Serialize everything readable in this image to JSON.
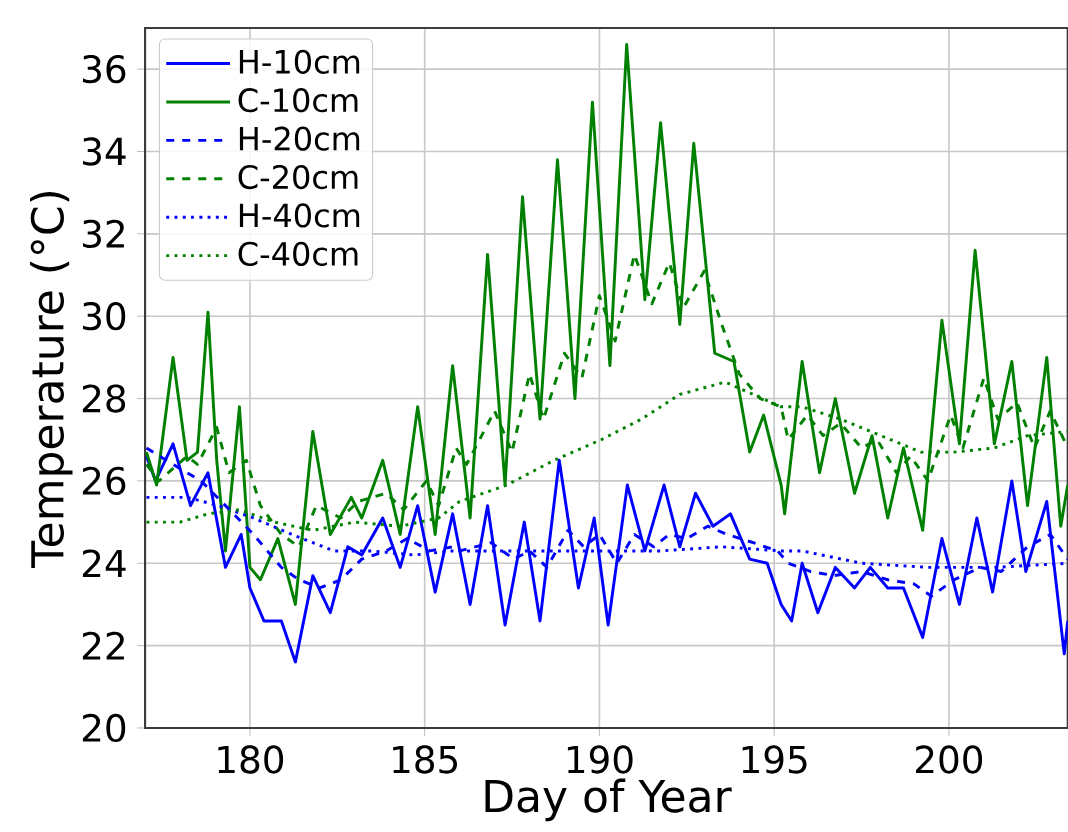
{
  "chart_data": {
    "type": "line",
    "xlabel": "Day of Year",
    "ylabel": "Temperature (°C)",
    "xlim": [
      177,
      203.4
    ],
    "ylim": [
      20,
      37
    ],
    "xticks": [
      180,
      185,
      190,
      195,
      200
    ],
    "yticks": [
      20,
      22,
      24,
      26,
      28,
      30,
      32,
      34,
      36
    ],
    "grid": true,
    "legend": "top left",
    "marker": "none",
    "series": [
      {
        "name": "H-10cm",
        "color": "#0000ff",
        "line_style": "solid",
        "x": [
          177.04,
          177.3,
          177.8,
          178.3,
          178.8,
          179.3,
          179.75,
          180.0,
          180.4,
          180.9,
          181.3,
          181.8,
          182.3,
          182.8,
          183.2,
          183.8,
          184.3,
          184.8,
          185.3,
          185.8,
          186.3,
          186.8,
          187.3,
          187.85,
          188.3,
          188.85,
          189.4,
          189.85,
          190.25,
          190.8,
          191.3,
          191.85,
          192.3,
          192.75,
          193.25,
          193.75,
          194.3,
          194.8,
          195.2,
          195.5,
          195.8,
          196.25,
          196.75,
          197.3,
          197.75,
          198.25,
          198.7,
          199.25,
          199.8,
          200.3,
          200.8,
          201.25,
          201.8,
          202.2,
          202.8,
          203.3,
          203.4
        ],
        "values": [
          26.6,
          26.0,
          26.9,
          25.4,
          26.2,
          23.9,
          24.7,
          23.4,
          22.6,
          22.6,
          21.6,
          23.7,
          22.8,
          24.4,
          24.2,
          25.1,
          23.9,
          25.4,
          23.3,
          25.2,
          23.0,
          25.4,
          22.5,
          25.0,
          22.6,
          26.5,
          23.4,
          25.1,
          22.5,
          25.9,
          24.3,
          25.9,
          24.4,
          25.7,
          24.9,
          25.2,
          24.1,
          24.0,
          23.0,
          22.6,
          24.0,
          22.8,
          23.9,
          23.4,
          23.9,
          23.4,
          23.4,
          22.2,
          24.6,
          23.0,
          25.1,
          23.3,
          26.0,
          23.8,
          25.5,
          21.8,
          22.6
        ]
      },
      {
        "name": "C-10cm",
        "color": "#008000",
        "line_style": "solid",
        "x": [
          177.04,
          177.33,
          177.8,
          178.2,
          178.5,
          178.8,
          179.05,
          179.3,
          179.7,
          180.0,
          180.3,
          180.8,
          181.3,
          181.8,
          182.3,
          182.9,
          183.2,
          183.8,
          184.3,
          184.8,
          185.3,
          185.8,
          186.3,
          186.8,
          187.3,
          187.8,
          188.3,
          188.8,
          189.3,
          189.8,
          190.3,
          190.78,
          191.3,
          191.75,
          192.3,
          192.7,
          193.3,
          193.85,
          194.3,
          194.7,
          195.2,
          195.3,
          195.8,
          196.3,
          196.75,
          197.3,
          197.8,
          198.25,
          198.7,
          199.25,
          199.8,
          200.3,
          200.75,
          201.3,
          201.8,
          202.25,
          202.8,
          203.2,
          203.4
        ],
        "values": [
          26.7,
          25.9,
          29.0,
          26.5,
          26.7,
          30.1,
          26.5,
          24.3,
          27.8,
          23.9,
          23.6,
          24.6,
          23.0,
          27.2,
          24.7,
          25.6,
          25.1,
          26.5,
          24.7,
          27.8,
          24.7,
          28.8,
          25.1,
          31.5,
          25.9,
          32.9,
          27.5,
          33.8,
          28.0,
          35.2,
          28.8,
          36.6,
          30.4,
          34.7,
          29.8,
          34.2,
          29.1,
          28.9,
          26.7,
          27.6,
          25.9,
          25.2,
          28.9,
          26.2,
          28.0,
          25.7,
          27.1,
          25.1,
          26.8,
          24.8,
          29.9,
          26.9,
          31.6,
          26.9,
          28.9,
          25.4,
          29.0,
          24.9,
          25.9
        ]
      },
      {
        "name": "H-20cm",
        "color": "#0000ff",
        "line_style": "dashed",
        "x": [
          177.04,
          177.8,
          178.6,
          179.3,
          180.1,
          180.9,
          181.4,
          182.0,
          182.6,
          183.2,
          183.9,
          184.5,
          185.15,
          185.8,
          186.0,
          186.9,
          187.55,
          188.0,
          188.5,
          189.1,
          189.55,
          190.0,
          190.5,
          191.0,
          191.55,
          192.0,
          192.5,
          193.1,
          193.65,
          194.4,
          195.1,
          195.4,
          196.05,
          196.7,
          197.5,
          198.25,
          199.0,
          199.5,
          200.15,
          200.9,
          201.5,
          202.25,
          202.9,
          203.4
        ],
        "values": [
          26.8,
          26.4,
          26.0,
          25.4,
          24.7,
          23.9,
          23.6,
          23.4,
          23.6,
          24.1,
          24.3,
          24.6,
          24.3,
          24.4,
          24.3,
          24.5,
          24.1,
          24.3,
          23.9,
          24.8,
          24.4,
          24.7,
          24.0,
          24.7,
          24.4,
          24.7,
          24.6,
          24.9,
          24.7,
          24.5,
          24.3,
          24.0,
          23.8,
          23.7,
          23.8,
          23.6,
          23.5,
          23.2,
          23.6,
          23.9,
          23.8,
          24.4,
          24.7,
          24.1
        ]
      },
      {
        "name": "C-20cm",
        "color": "#008000",
        "line_style": "dashed",
        "x": [
          177.04,
          177.4,
          178.2,
          178.5,
          179.05,
          179.4,
          179.9,
          180.3,
          180.9,
          181.4,
          181.9,
          182.6,
          183.1,
          183.9,
          184.4,
          185.05,
          185.4,
          185.9,
          186.2,
          187.0,
          187.5,
          188.0,
          188.4,
          189.0,
          189.5,
          190.0,
          190.45,
          191.0,
          191.5,
          192.0,
          192.4,
          193.0,
          193.5,
          194.0,
          194.6,
          195.2,
          195.4,
          195.95,
          196.4,
          196.9,
          197.5,
          197.95,
          198.5,
          198.9,
          199.4,
          200.05,
          200.4,
          201.0,
          201.4,
          201.95,
          202.45,
          202.9,
          203.4
        ],
        "values": [
          26.4,
          26.0,
          26.6,
          26.4,
          27.3,
          26.2,
          26.5,
          25.4,
          24.7,
          24.4,
          25.4,
          25.1,
          25.5,
          25.7,
          25.3,
          26.0,
          25.4,
          26.8,
          26.4,
          27.7,
          26.7,
          28.6,
          27.5,
          29.1,
          28.5,
          30.5,
          29.4,
          31.5,
          30.3,
          31.3,
          30.2,
          31.1,
          29.8,
          28.6,
          28.0,
          27.8,
          27.0,
          27.6,
          27.1,
          27.4,
          26.8,
          27.0,
          26.2,
          26.6,
          26.0,
          27.6,
          26.8,
          28.5,
          27.5,
          27.9,
          26.8,
          27.7,
          26.8
        ]
      },
      {
        "name": "H-40cm",
        "color": "#0000ff",
        "line_style": "dotted",
        "x": [
          177.04,
          178.2,
          179.1,
          180.1,
          181.2,
          182.4,
          183.5,
          184.7,
          185.8,
          186.6,
          188.3,
          190.0,
          191.75,
          193.5,
          195.2,
          195.8,
          197.5,
          199.4,
          201.3,
          203.4
        ],
        "values": [
          25.6,
          25.6,
          25.4,
          25.1,
          24.7,
          24.3,
          24.3,
          24.2,
          24.3,
          24.3,
          24.3,
          24.3,
          24.3,
          24.4,
          24.3,
          24.3,
          24.0,
          23.9,
          23.9,
          24.0
        ]
      },
      {
        "name": "C-40cm",
        "color": "#008000",
        "line_style": "dotted",
        "x": [
          177.04,
          178.0,
          178.8,
          179.7,
          180.7,
          181.8,
          183.0,
          184.3,
          185.4,
          186.0,
          187.35,
          188.7,
          190.05,
          191.2,
          192.3,
          193.6,
          194.4,
          195.2,
          195.8,
          196.9,
          198.05,
          199.2,
          200.15,
          201.3,
          202.25,
          203.4
        ],
        "values": [
          25.0,
          25.0,
          25.2,
          25.3,
          25.0,
          24.8,
          25.0,
          24.9,
          25.1,
          25.5,
          25.9,
          26.5,
          27.0,
          27.5,
          28.1,
          28.4,
          28.1,
          27.8,
          27.8,
          27.5,
          27.1,
          26.7,
          26.7,
          26.8,
          27.1,
          27.2
        ]
      }
    ]
  }
}
